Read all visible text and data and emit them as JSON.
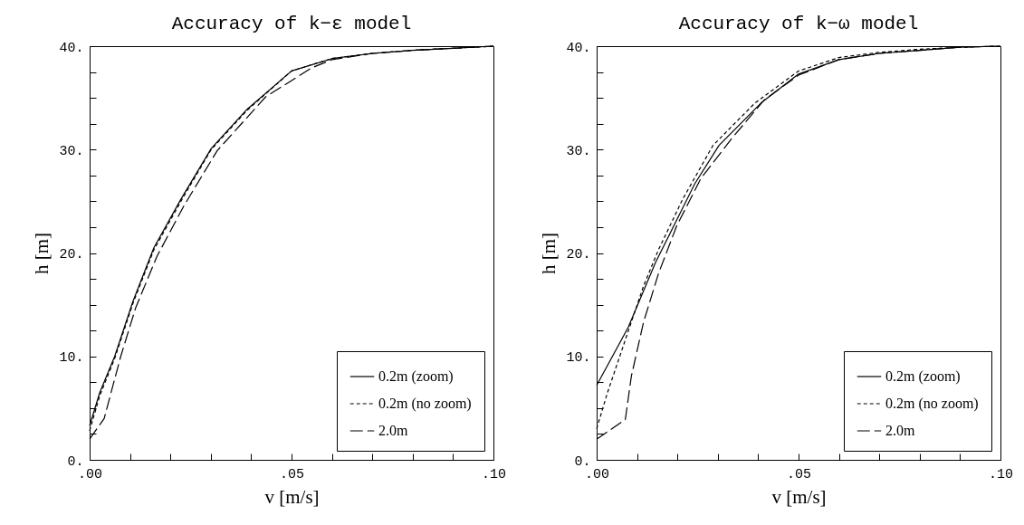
{
  "chart_data": [
    {
      "type": "line",
      "title": "Accuracy of k−ε model",
      "xlabel": "v [m/s]",
      "ylabel": "h [m]",
      "xlim": [
        0,
        0.1
      ],
      "ylim": [
        0,
        40
      ],
      "xticks": [
        {
          "value": 0,
          "label": ".00"
        },
        {
          "value": 0.01,
          "label": null
        },
        {
          "value": 0.02,
          "label": null
        },
        {
          "value": 0.03,
          "label": null
        },
        {
          "value": 0.04,
          "label": null
        },
        {
          "value": 0.05,
          "label": ".05"
        },
        {
          "value": 0.06,
          "label": null
        },
        {
          "value": 0.07,
          "label": null
        },
        {
          "value": 0.08,
          "label": null
        },
        {
          "value": 0.09,
          "label": null
        },
        {
          "value": 0.1,
          "label": ".10"
        }
      ],
      "yticks": [
        {
          "value": 0,
          "label": "0."
        },
        {
          "value": 2.5,
          "label": null
        },
        {
          "value": 5,
          "label": null
        },
        {
          "value": 7.5,
          "label": null
        },
        {
          "value": 10,
          "label": "10."
        },
        {
          "value": 12.5,
          "label": null
        },
        {
          "value": 15,
          "label": null
        },
        {
          "value": 17.5,
          "label": null
        },
        {
          "value": 20,
          "label": "20."
        },
        {
          "value": 22.5,
          "label": null
        },
        {
          "value": 25,
          "label": null
        },
        {
          "value": 27.5,
          "label": null
        },
        {
          "value": 30,
          "label": "30."
        },
        {
          "value": 32.5,
          "label": null
        },
        {
          "value": 35,
          "label": null
        },
        {
          "value": 37.5,
          "label": null
        },
        {
          "value": 40,
          "label": "40."
        }
      ],
      "legend": "bottom right",
      "grid": false,
      "series": [
        {
          "name": "0.2m (zoom)",
          "color": "#000000",
          "line_style": "solid",
          "x": [
            0,
            0.0025,
            0.0062,
            0.0107,
            0.0159,
            0.0226,
            0.0301,
            0.039,
            0.05,
            0.06,
            0.07,
            0.08,
            0.09,
            0.1
          ],
          "values": [
            3.3,
            6.5,
            10.0,
            15.3,
            20.5,
            25.2,
            30.1,
            33.9,
            37.6,
            38.8,
            39.3,
            39.6,
            39.8,
            40
          ]
        },
        {
          "name": "0.2m (no zoom)",
          "color": "#000000",
          "line_style": "dotted",
          "x": [
            0,
            0.0025,
            0.0062,
            0.0107,
            0.0159,
            0.0226,
            0.0301,
            0.039,
            0.05,
            0.06,
            0.07,
            0.08,
            0.09,
            0.1
          ],
          "values": [
            2.8,
            6.2,
            9.8,
            15.1,
            20.3,
            25.0,
            30.0,
            33.8,
            37.6,
            38.8,
            39.3,
            39.6,
            39.8,
            40
          ]
        },
        {
          "name": "2.0m",
          "color": "#000000",
          "line_style": "dashed",
          "x": [
            0,
            0.0036,
            0.0051,
            0.0077,
            0.0114,
            0.0167,
            0.0234,
            0.0316,
            0.0436,
            0.055,
            0.06,
            0.07,
            0.08,
            0.09,
            0.1
          ],
          "values": [
            2.0,
            4.0,
            6.2,
            10.0,
            14.7,
            19.7,
            24.6,
            29.9,
            35.1,
            37.9,
            38.7,
            39.3,
            39.6,
            39.8,
            40
          ]
        }
      ]
    },
    {
      "type": "line",
      "title": "Accuracy of k−ω model",
      "xlabel": "v [m/s]",
      "ylabel": "h [m]",
      "xlim": [
        0,
        0.1
      ],
      "ylim": [
        0,
        40
      ],
      "xticks": [
        {
          "value": 0,
          "label": ".00"
        },
        {
          "value": 0.01,
          "label": null
        },
        {
          "value": 0.02,
          "label": null
        },
        {
          "value": 0.03,
          "label": null
        },
        {
          "value": 0.04,
          "label": null
        },
        {
          "value": 0.05,
          "label": ".05"
        },
        {
          "value": 0.06,
          "label": null
        },
        {
          "value": 0.07,
          "label": null
        },
        {
          "value": 0.08,
          "label": null
        },
        {
          "value": 0.09,
          "label": null
        },
        {
          "value": 0.1,
          "label": ".10"
        }
      ],
      "yticks": [
        {
          "value": 0,
          "label": "0."
        },
        {
          "value": 2.5,
          "label": null
        },
        {
          "value": 5,
          "label": null
        },
        {
          "value": 7.5,
          "label": null
        },
        {
          "value": 10,
          "label": "10."
        },
        {
          "value": 12.5,
          "label": null
        },
        {
          "value": 15,
          "label": null
        },
        {
          "value": 17.5,
          "label": null
        },
        {
          "value": 20,
          "label": "20."
        },
        {
          "value": 22.5,
          "label": null
        },
        {
          "value": 25,
          "label": null
        },
        {
          "value": 27.5,
          "label": null
        },
        {
          "value": 30,
          "label": "30."
        },
        {
          "value": 32.5,
          "label": null
        },
        {
          "value": 35,
          "label": null
        },
        {
          "value": 37.5,
          "label": null
        },
        {
          "value": 40,
          "label": "40."
        }
      ],
      "legend": "bottom right",
      "grid": false,
      "series": [
        {
          "name": "0.2m (zoom)",
          "color": "#000000",
          "line_style": "solid",
          "x": [
            0,
            0.0078,
            0.0146,
            0.0183,
            0.0243,
            0.0303,
            0.0407,
            0.05,
            0.06,
            0.07,
            0.08,
            0.09,
            0.1
          ],
          "values": [
            7.2,
            12.8,
            19.1,
            22.0,
            26.7,
            30.4,
            34.5,
            37.3,
            38.7,
            39.3,
            39.6,
            39.9,
            40
          ]
        },
        {
          "name": "0.2m (no zoom)",
          "color": "#000000",
          "line_style": "dotted",
          "x": [
            0,
            0.0026,
            0.0071,
            0.0116,
            0.0153,
            0.0213,
            0.0288,
            0.0392,
            0.05,
            0.06,
            0.07,
            0.08,
            0.09,
            0.1
          ],
          "values": [
            3.0,
            6.4,
            11.6,
            16.8,
            20.3,
            25.2,
            30.4,
            34.5,
            37.6,
            38.9,
            39.4,
            39.7,
            39.9,
            40
          ]
        },
        {
          "name": "2.0m",
          "color": "#000000",
          "line_style": "dashed",
          "x": [
            0,
            0.0071,
            0.0086,
            0.0116,
            0.0153,
            0.0198,
            0.0258,
            0.0333,
            0.0415,
            0.05,
            0.06,
            0.07,
            0.08,
            0.09,
            0.1
          ],
          "values": [
            2.0,
            3.9,
            8.1,
            13.3,
            18.0,
            22.6,
            27.2,
            31.0,
            34.8,
            37.2,
            38.7,
            39.3,
            39.6,
            39.9,
            40
          ]
        }
      ]
    }
  ]
}
